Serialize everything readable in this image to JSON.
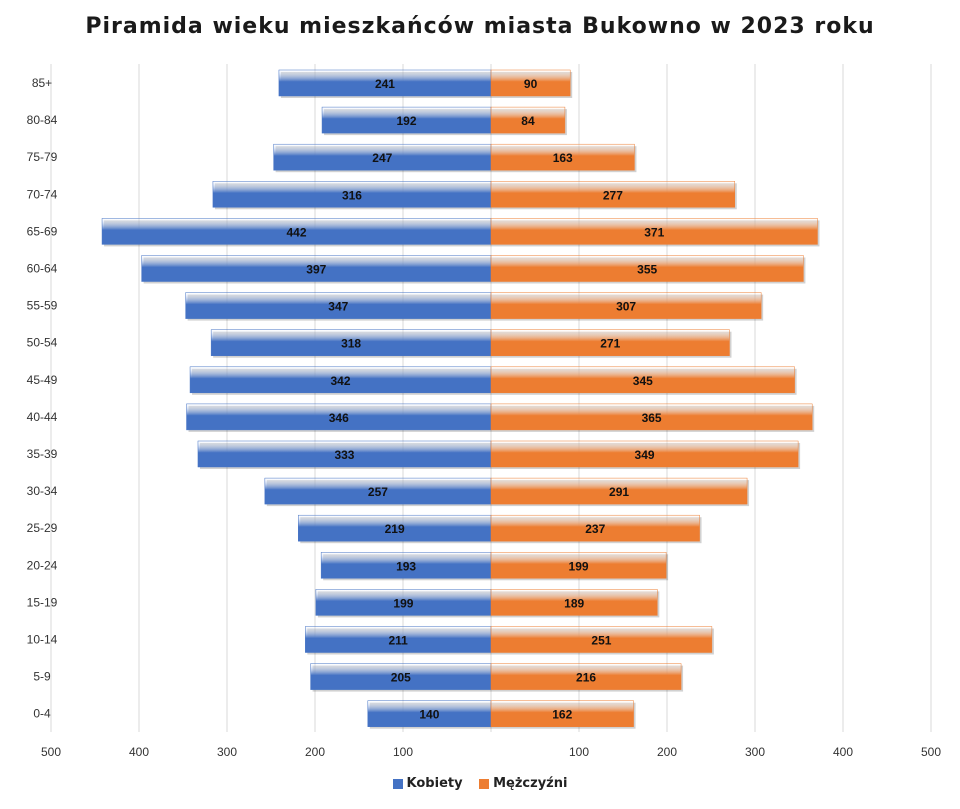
{
  "chart_data": {
    "type": "bar",
    "orientation": "horizontal",
    "title": "Piramida wieku mieszkańców miasta Bukowno w 2023 roku",
    "categories": [
      "85+",
      "80-84",
      "75-79",
      "70-74",
      "65-69",
      "60-64",
      "55-59",
      "50-54",
      "45-49",
      "40-44",
      "35-39",
      "30-34",
      "25-29",
      "20-24",
      "15-19",
      "10-14",
      "5-9",
      "0-4"
    ],
    "series": [
      {
        "name": "Kobiety",
        "color": "#4472c4",
        "side": "left",
        "values": [
          241,
          192,
          247,
          316,
          442,
          397,
          347,
          318,
          342,
          346,
          333,
          257,
          219,
          193,
          199,
          211,
          205,
          140
        ]
      },
      {
        "name": "Mężczyźni",
        "color": "#ed7d31",
        "side": "right",
        "values": [
          90,
          84,
          163,
          277,
          371,
          355,
          307,
          271,
          345,
          365,
          349,
          291,
          237,
          199,
          189,
          251,
          216,
          162
        ]
      }
    ],
    "xlim": [
      -500,
      500
    ],
    "tick_labels": [
      "500",
      "400",
      "300",
      "200",
      "100",
      "",
      "100",
      "200",
      "300",
      "400",
      "500"
    ],
    "grid": true,
    "legend_position": "bottom"
  }
}
